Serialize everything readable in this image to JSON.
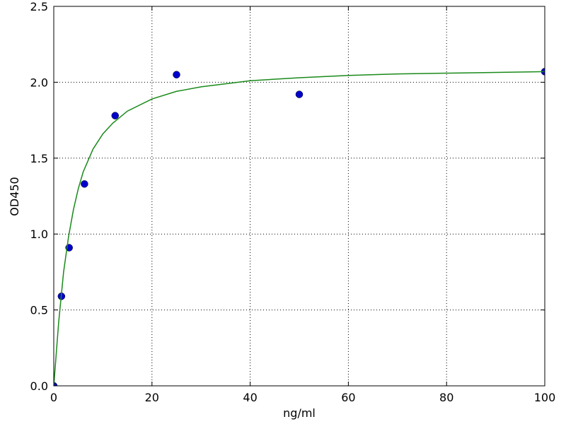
{
  "chart_data": {
    "type": "scatter",
    "xlabel": "ng/ml",
    "ylabel": "OD450",
    "xlim": [
      0,
      100
    ],
    "ylim": [
      0,
      2.5
    ],
    "xticks": [
      0,
      20,
      40,
      60,
      80,
      100
    ],
    "yticks": [
      {
        "value": 0,
        "label": "0.0"
      },
      0.5,
      {
        "value": 1,
        "label": "1.0"
      },
      1.5,
      {
        "value": 2,
        "label": "2.0"
      },
      2.5
    ],
    "grid": true,
    "series": [
      {
        "type": "scatter",
        "color": "#0000cc",
        "x": [
          0,
          1.5625,
          3.125,
          6.25,
          12.5,
          25,
          50,
          100
        ],
        "values": [
          0,
          0.59,
          0.91,
          1.33,
          1.78,
          2.05,
          1.92,
          2.07
        ]
      },
      {
        "type": "line",
        "color": "#1a8a1a",
        "x": [
          0,
          1,
          2,
          3,
          4,
          5,
          6,
          8,
          10,
          12,
          15,
          20,
          25,
          30,
          40,
          50,
          60,
          70,
          80,
          90,
          100
        ],
        "values": [
          0,
          0.42,
          0.75,
          0.98,
          1.16,
          1.3,
          1.41,
          1.56,
          1.66,
          1.73,
          1.81,
          1.89,
          1.94,
          1.97,
          2.01,
          2.03,
          2.045,
          2.055,
          2.06,
          2.065,
          2.07
        ]
      }
    ]
  }
}
